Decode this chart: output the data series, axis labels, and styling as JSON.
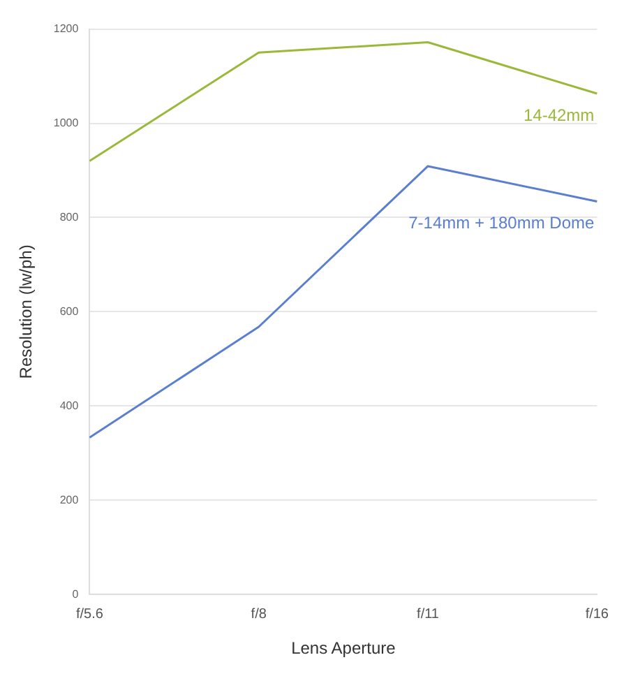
{
  "chart_data": {
    "type": "line",
    "xlabel": "Lens Aperture",
    "ylabel": "Resolution (lw/ph)",
    "categories": [
      "f/5.6",
      "f/8",
      "f/11",
      "f/16"
    ],
    "series": [
      {
        "name": "14-42mm",
        "color": "#9ab83a",
        "values": [
          920,
          1150,
          1172,
          1063
        ]
      },
      {
        "name": "7-14mm + 180mm Dome",
        "color": "#5b7fcf",
        "values": [
          333,
          568,
          909,
          834
        ]
      }
    ],
    "ylim": [
      0,
      1200
    ],
    "yticks": [
      0,
      200,
      400,
      600,
      800,
      1000,
      1200
    ],
    "grid": "y",
    "legend": false,
    "marker": "none",
    "line_style": "solid"
  }
}
